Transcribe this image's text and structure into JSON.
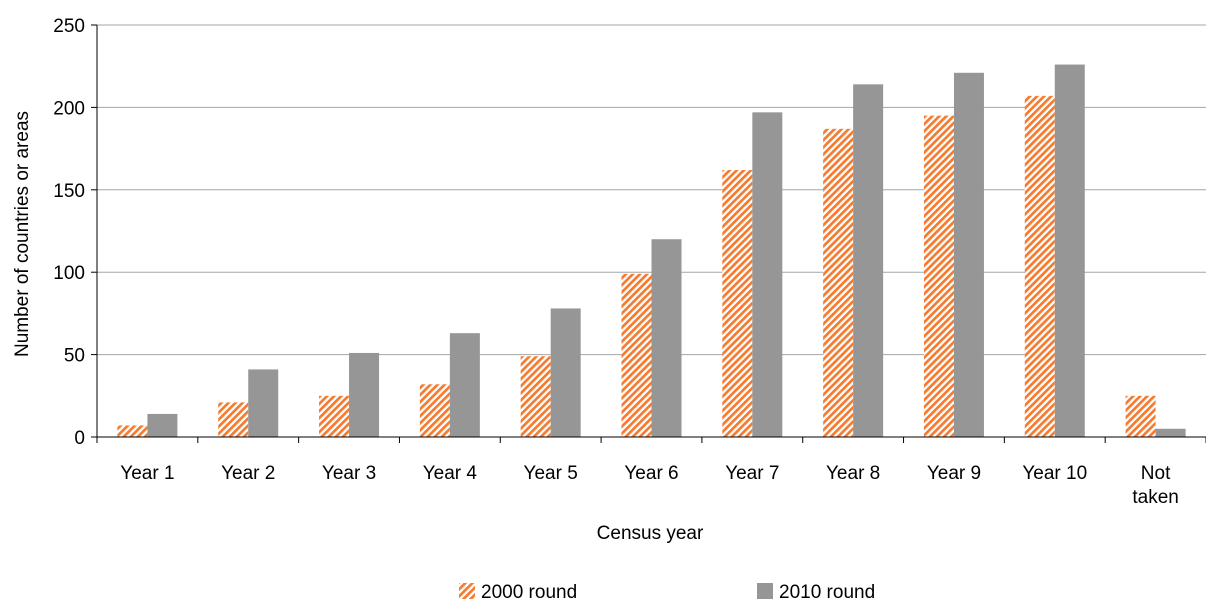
{
  "chart_data": {
    "type": "bar",
    "title": "",
    "xlabel": "Census year",
    "ylabel": "Number of countries or areas",
    "ylim": [
      0,
      250
    ],
    "yticks": [
      0,
      50,
      100,
      150,
      200,
      250
    ],
    "categories": [
      [
        "Year 1"
      ],
      [
        "Year 2"
      ],
      [
        "Year 3"
      ],
      [
        "Year 4"
      ],
      [
        "Year 5"
      ],
      [
        "Year 6"
      ],
      [
        "Year 7"
      ],
      [
        "Year 8"
      ],
      [
        "Year 9"
      ],
      [
        "Year 10"
      ],
      [
        "Not",
        "taken"
      ]
    ],
    "series": [
      {
        "name": "2000 round",
        "color": "#f47b30",
        "pattern": "diagonal-hatch",
        "values": [
          7,
          21,
          25,
          32,
          49,
          99,
          162,
          187,
          195,
          207,
          25
        ]
      },
      {
        "name": "2010 round",
        "color": "#969696",
        "pattern": "solid",
        "values": [
          14,
          41,
          51,
          63,
          78,
          120,
          197,
          214,
          221,
          226,
          5
        ]
      }
    ],
    "grid": true,
    "legend_position": "bottom"
  }
}
